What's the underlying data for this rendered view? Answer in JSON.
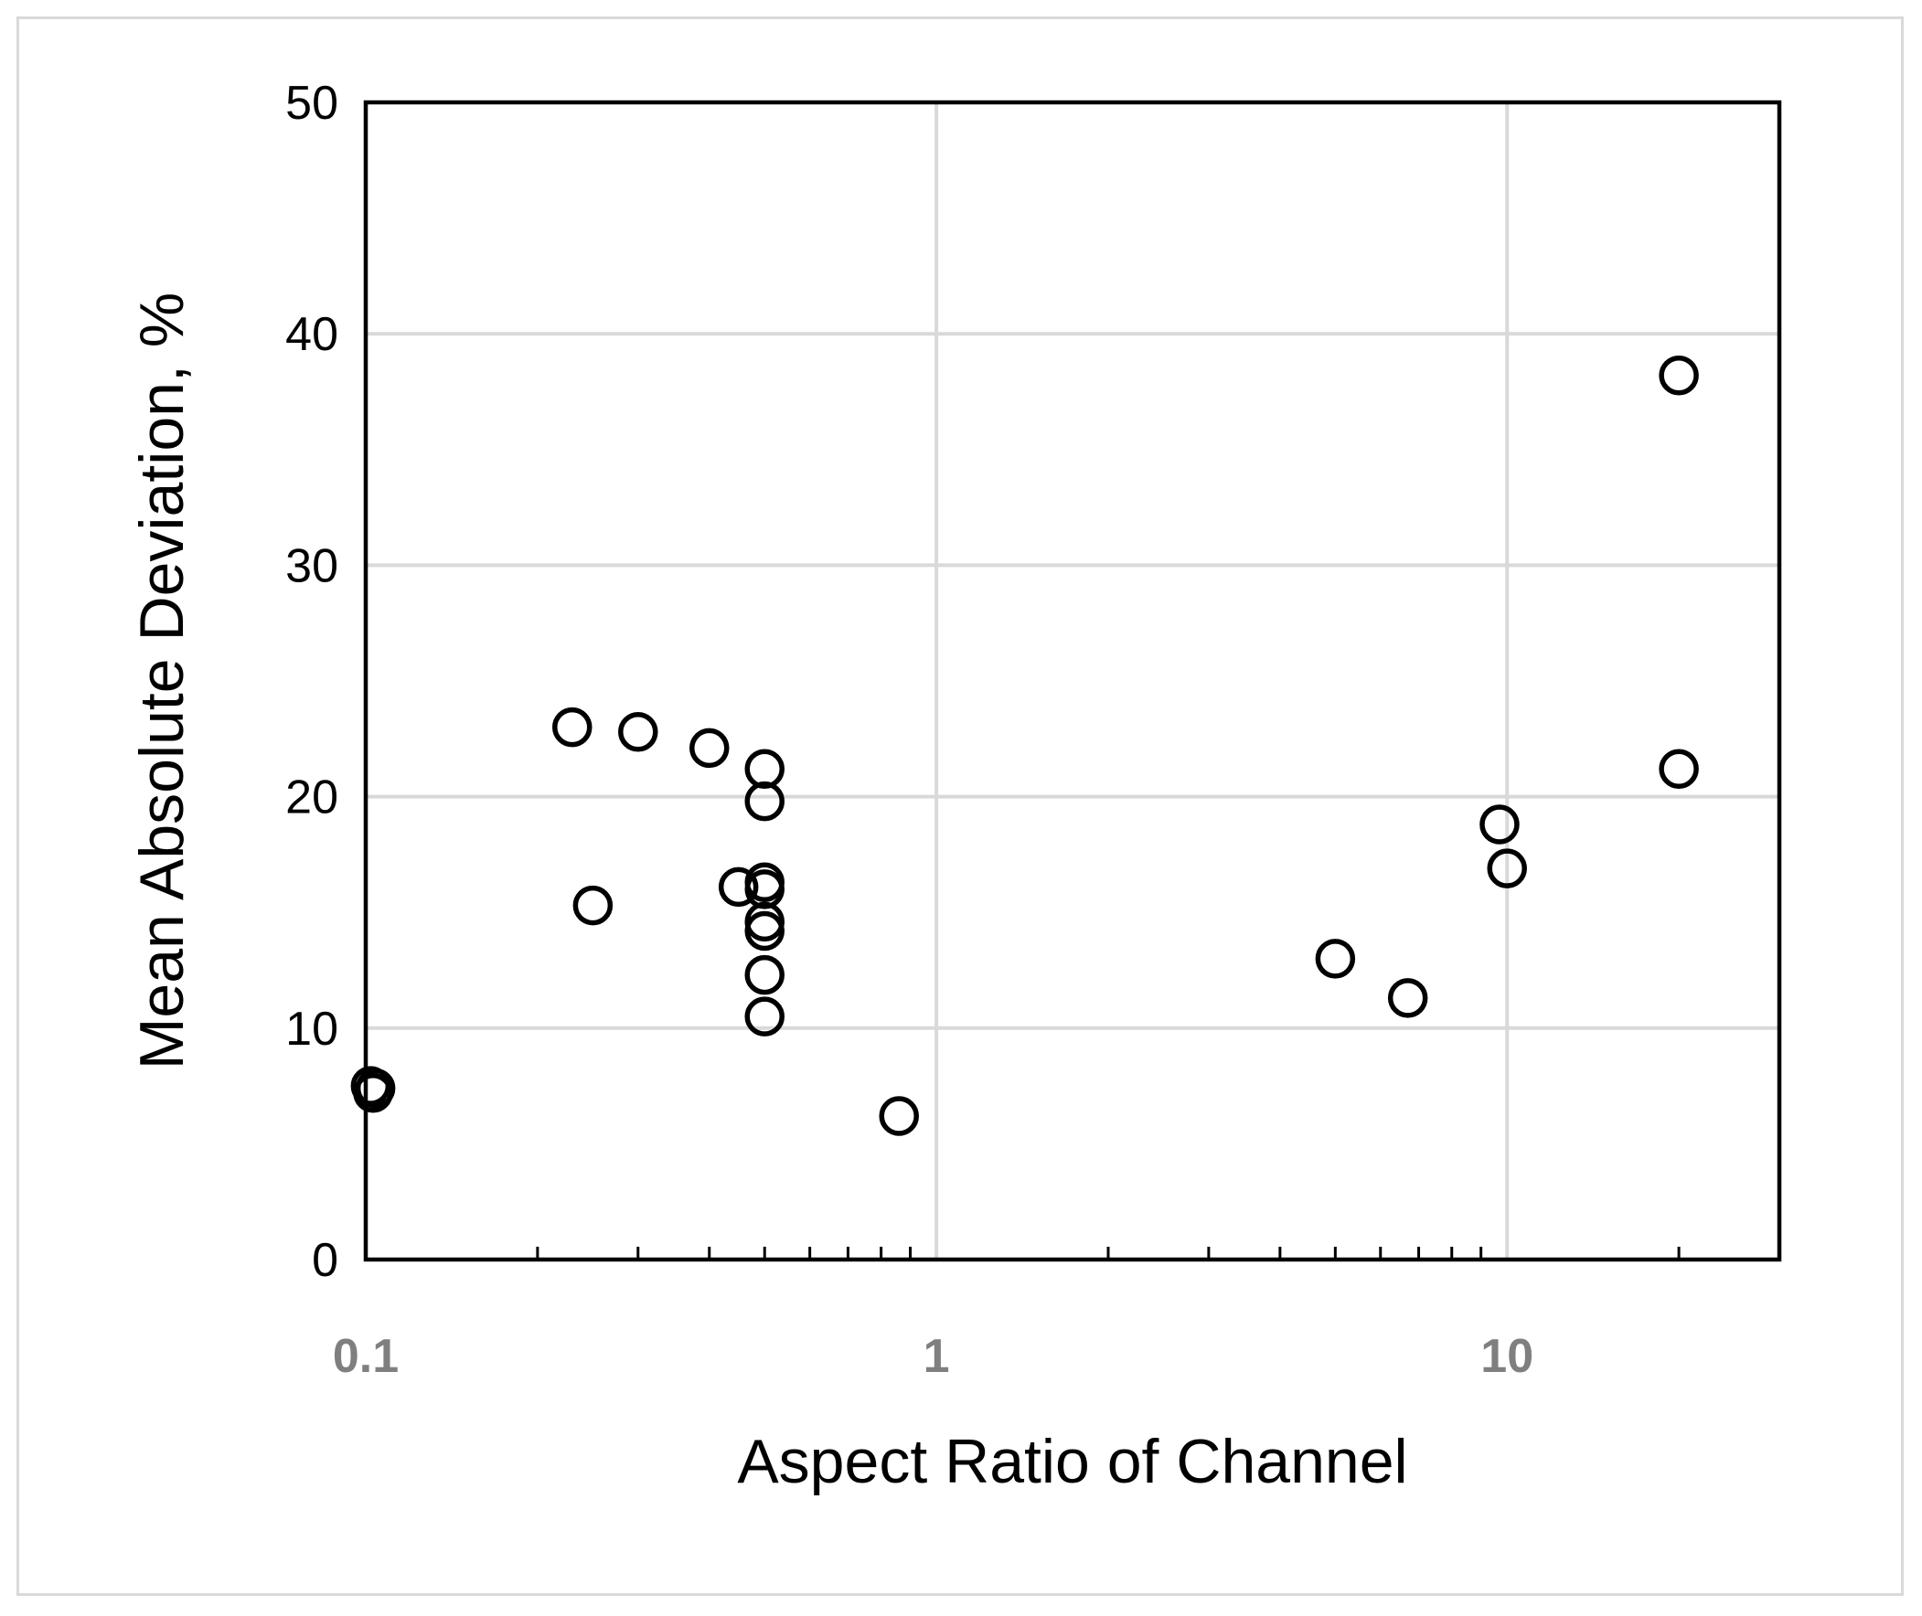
{
  "chart_data": {
    "type": "scatter",
    "xlabel": "Aspect Ratio of Channel",
    "ylabel": "Mean Absolute Deviation, %",
    "x_scale": "log",
    "xlim": [
      0.1,
      30
    ],
    "ylim": [
      0,
      50
    ],
    "x_ticks": [
      "0.1",
      "1",
      "10"
    ],
    "y_ticks": [
      "0",
      "10",
      "20",
      "30",
      "40",
      "50"
    ],
    "grid": true,
    "marker": "open-circle",
    "colors": {
      "marker": "#000000",
      "grid": "#d9d9d9",
      "x_tick_text": "#7f7f7f",
      "frame": "#d9d9d9"
    },
    "series": [
      {
        "points": [
          {
            "x": 0.102,
            "y": 7.5
          },
          {
            "x": 0.103,
            "y": 7.2
          },
          {
            "x": 0.104,
            "y": 7.4
          },
          {
            "x": 0.23,
            "y": 23.0
          },
          {
            "x": 0.25,
            "y": 15.3
          },
          {
            "x": 0.3,
            "y": 22.8
          },
          {
            "x": 0.4,
            "y": 22.1
          },
          {
            "x": 0.45,
            "y": 16.1
          },
          {
            "x": 0.5,
            "y": 21.2
          },
          {
            "x": 0.5,
            "y": 19.8
          },
          {
            "x": 0.5,
            "y": 16.3
          },
          {
            "x": 0.5,
            "y": 16.0
          },
          {
            "x": 0.5,
            "y": 14.6
          },
          {
            "x": 0.5,
            "y": 14.2
          },
          {
            "x": 0.5,
            "y": 12.3
          },
          {
            "x": 0.5,
            "y": 10.5
          },
          {
            "x": 0.86,
            "y": 6.2
          },
          {
            "x": 5.0,
            "y": 13.0
          },
          {
            "x": 6.7,
            "y": 11.3
          },
          {
            "x": 9.7,
            "y": 18.8
          },
          {
            "x": 10.0,
            "y": 16.9
          },
          {
            "x": 20.0,
            "y": 38.2
          },
          {
            "x": 20.0,
            "y": 21.2
          }
        ]
      }
    ]
  }
}
